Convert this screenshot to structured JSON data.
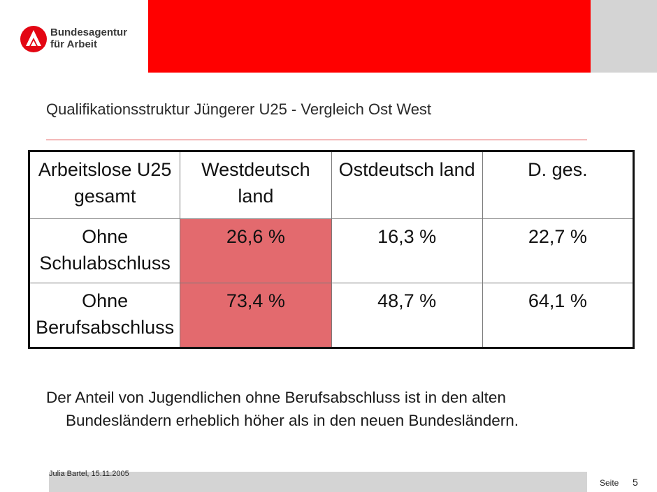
{
  "header": {
    "logo_line1": "Bundesagentur",
    "logo_line2": "für Arbeit",
    "brand_red": "#ff0000"
  },
  "slide": {
    "title": "Qualifikationsstruktur Jüngerer U25 - Vergleich Ost West"
  },
  "table": {
    "headers": [
      "Arbeitslose U25 gesamt",
      "Westdeutsch land",
      "Ostdeutsch land",
      "D. ges."
    ],
    "rows": [
      [
        "Ohne Schulabschluss",
        "26,6 %",
        "16,3 %",
        "22,7 %"
      ],
      [
        "Ohne Berufsabschluss",
        "73,4 %",
        "48,7 %",
        "64,1 %"
      ]
    ],
    "highlight_color": "#e36a6e"
  },
  "note": {
    "line1": "Der Anteil von Jugendlichen ohne Berufsabschluss ist in den alten",
    "line2": "Bundesländern erheblich höher als in den neuen Bundesländern."
  },
  "footer": {
    "author_date": "Julia Bartel, 15.11.2005",
    "page_label": "Seite",
    "page_number": "5"
  }
}
